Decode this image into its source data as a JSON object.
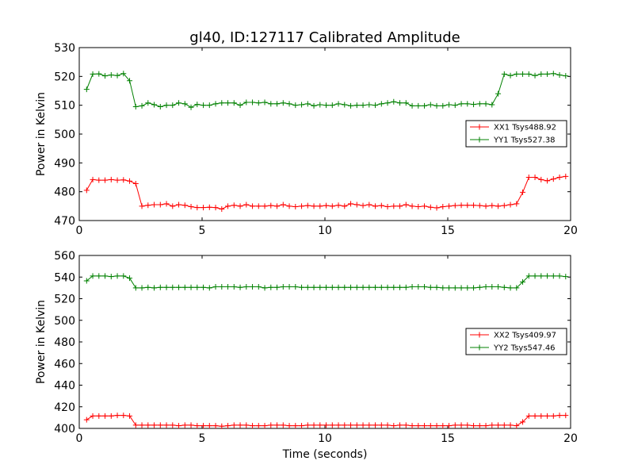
{
  "title": "gl40, ID:127117 Calibrated Amplitude",
  "chart_data": [
    {
      "type": "line",
      "title": "gl40, ID:127117 Calibrated Amplitude",
      "xlabel": "",
      "ylabel": "Power in Kelvin",
      "xlim": [
        0,
        20
      ],
      "ylim": [
        470,
        530
      ],
      "xticks": [
        0,
        5,
        10,
        15,
        20
      ],
      "yticks": [
        470,
        480,
        490,
        500,
        510,
        520,
        530
      ],
      "grid": false,
      "legend_position": "center-right",
      "series": [
        {
          "name": "XX1 Tsys488.92",
          "color": "#ff0000",
          "x": [
            0.3,
            0.55,
            0.8,
            1.05,
            1.3,
            1.55,
            1.8,
            2.05,
            2.3,
            2.55,
            2.8,
            3.05,
            3.3,
            3.55,
            3.8,
            4.05,
            4.3,
            4.55,
            4.8,
            5.05,
            5.3,
            5.55,
            5.8,
            6.05,
            6.3,
            6.55,
            6.8,
            7.05,
            7.3,
            7.55,
            7.8,
            8.05,
            8.3,
            8.55,
            8.8,
            9.05,
            9.3,
            9.55,
            9.8,
            10.05,
            10.3,
            10.55,
            10.8,
            11.05,
            11.3,
            11.55,
            11.8,
            12.05,
            12.3,
            12.55,
            12.8,
            13.05,
            13.3,
            13.55,
            13.8,
            14.05,
            14.3,
            14.55,
            14.8,
            15.05,
            15.3,
            15.55,
            15.8,
            16.05,
            16.3,
            16.55,
            16.8,
            17.05,
            17.3,
            17.55,
            17.8,
            18.05,
            18.3,
            18.55,
            18.8,
            19.05,
            19.3,
            19.55,
            19.8
          ],
          "y": [
            480.5,
            484.2,
            484.0,
            484.0,
            484.2,
            484.0,
            484.1,
            483.7,
            482.8,
            475.0,
            475.3,
            475.5,
            475.5,
            475.8,
            475.0,
            475.5,
            475.3,
            474.8,
            474.5,
            474.5,
            474.6,
            474.5,
            474.0,
            475.0,
            475.3,
            475.0,
            475.5,
            475.0,
            475.0,
            475.0,
            475.2,
            475.0,
            475.5,
            475.0,
            474.8,
            475.0,
            475.2,
            475.0,
            475.0,
            475.2,
            475.0,
            475.3,
            475.0,
            475.8,
            475.5,
            475.2,
            475.5,
            475.0,
            475.2,
            474.8,
            475.0,
            475.0,
            475.5,
            475.0,
            474.8,
            475.0,
            474.6,
            474.4,
            474.8,
            475.0,
            475.2,
            475.3,
            475.3,
            475.3,
            475.2,
            475.0,
            475.2,
            475.0,
            475.2,
            475.5,
            475.8,
            479.8,
            485.0,
            485.0,
            484.2,
            483.8,
            484.4,
            485.0,
            485.3
          ]
        },
        {
          "name": "YY1 Tsys527.38",
          "color": "#008000",
          "x": [
            0.3,
            0.55,
            0.8,
            1.05,
            1.3,
            1.55,
            1.8,
            2.05,
            2.3,
            2.55,
            2.8,
            3.05,
            3.3,
            3.55,
            3.8,
            4.05,
            4.3,
            4.55,
            4.8,
            5.05,
            5.3,
            5.55,
            5.8,
            6.05,
            6.3,
            6.55,
            6.8,
            7.05,
            7.3,
            7.55,
            7.8,
            8.05,
            8.3,
            8.55,
            8.8,
            9.05,
            9.3,
            9.55,
            9.8,
            10.05,
            10.3,
            10.55,
            10.8,
            11.05,
            11.3,
            11.55,
            11.8,
            12.05,
            12.3,
            12.55,
            12.8,
            13.05,
            13.3,
            13.55,
            13.8,
            14.05,
            14.3,
            14.55,
            14.8,
            15.05,
            15.3,
            15.55,
            15.8,
            16.05,
            16.3,
            16.55,
            16.8,
            17.05,
            17.3,
            17.55,
            17.8,
            18.05,
            18.3,
            18.55,
            18.8,
            19.05,
            19.3,
            19.55,
            19.8
          ],
          "y": [
            515.5,
            520.8,
            520.9,
            520.2,
            520.5,
            520.3,
            521.0,
            518.5,
            509.5,
            509.8,
            510.8,
            510.2,
            509.5,
            510.0,
            510.0,
            510.8,
            510.5,
            509.3,
            510.3,
            510.0,
            510.0,
            510.5,
            510.8,
            510.8,
            510.8,
            510.0,
            511.0,
            511.0,
            510.8,
            511.0,
            510.5,
            510.5,
            510.8,
            510.5,
            510.0,
            510.2,
            510.5,
            509.8,
            510.2,
            510.0,
            510.0,
            510.5,
            510.2,
            509.8,
            510.0,
            510.0,
            510.2,
            510.0,
            510.5,
            510.8,
            511.2,
            510.8,
            510.8,
            509.8,
            509.8,
            509.8,
            510.2,
            509.8,
            509.8,
            510.2,
            510.0,
            510.5,
            510.5,
            510.3,
            510.5,
            510.5,
            510.2,
            514.0,
            520.8,
            520.3,
            520.8,
            520.8,
            520.8,
            520.3,
            520.8,
            520.8,
            521.0,
            520.5,
            520.2
          ],
          "_note_x_end": ""
        }
      ]
    },
    {
      "type": "line",
      "title": "",
      "xlabel": "Time (seconds)",
      "ylabel": "Power in Kelvin",
      "xlim": [
        0,
        20
      ],
      "ylim": [
        400,
        560
      ],
      "xticks": [
        0,
        5,
        10,
        15,
        20
      ],
      "yticks": [
        400,
        420,
        440,
        460,
        480,
        500,
        520,
        540,
        560
      ],
      "grid": false,
      "legend_position": "center-right",
      "series": [
        {
          "name": "XX2 Tsys409.97",
          "color": "#ff0000",
          "x": [
            0.3,
            0.55,
            0.8,
            1.05,
            1.3,
            1.55,
            1.8,
            2.05,
            2.3,
            2.55,
            2.8,
            3.05,
            3.3,
            3.55,
            3.8,
            4.05,
            4.3,
            4.55,
            4.8,
            5.05,
            5.3,
            5.55,
            5.8,
            6.05,
            6.3,
            6.55,
            6.8,
            7.05,
            7.3,
            7.55,
            7.8,
            8.05,
            8.3,
            8.55,
            8.8,
            9.05,
            9.3,
            9.55,
            9.8,
            10.05,
            10.3,
            10.55,
            10.8,
            11.05,
            11.3,
            11.55,
            11.8,
            12.05,
            12.3,
            12.55,
            12.8,
            13.05,
            13.3,
            13.55,
            13.8,
            14.05,
            14.3,
            14.55,
            14.8,
            15.05,
            15.3,
            15.55,
            15.8,
            16.05,
            16.3,
            16.55,
            16.8,
            17.05,
            17.3,
            17.55,
            17.8,
            18.05,
            18.3,
            18.55,
            18.8,
            19.05,
            19.3,
            19.55,
            19.8
          ],
          "y": [
            408,
            411.5,
            411.5,
            411.5,
            411.5,
            412,
            412,
            411.5,
            403,
            403,
            403,
            403,
            403,
            403,
            403,
            402.5,
            403,
            403,
            402.5,
            402.5,
            402.5,
            402.5,
            402,
            402.5,
            403,
            403,
            403,
            402.5,
            402.5,
            402.5,
            403,
            403,
            403,
            402.5,
            402.5,
            402.5,
            403,
            403,
            403,
            403,
            403,
            403,
            403,
            403,
            403,
            403,
            403,
            403,
            403,
            403,
            402.5,
            403,
            403,
            402.5,
            402.5,
            402.5,
            402.5,
            402.5,
            402.5,
            402.5,
            403,
            403,
            403,
            402.5,
            402.5,
            402.5,
            403,
            403,
            403,
            403,
            402.5,
            406,
            411.5,
            411.5,
            411.5,
            411.5,
            411.5,
            412,
            412
          ]
        },
        {
          "name": "YY2 Tsys547.46",
          "color": "#008000",
          "x": [
            0.3,
            0.55,
            0.8,
            1.05,
            1.3,
            1.55,
            1.8,
            2.05,
            2.3,
            2.55,
            2.8,
            3.05,
            3.3,
            3.55,
            3.8,
            4.05,
            4.3,
            4.55,
            4.8,
            5.05,
            5.3,
            5.55,
            5.8,
            6.05,
            6.3,
            6.55,
            6.8,
            7.05,
            7.3,
            7.55,
            7.8,
            8.05,
            8.3,
            8.55,
            8.8,
            9.05,
            9.3,
            9.55,
            9.8,
            10.05,
            10.3,
            10.55,
            10.8,
            11.05,
            11.3,
            11.55,
            11.8,
            12.05,
            12.3,
            12.55,
            12.8,
            13.05,
            13.3,
            13.55,
            13.8,
            14.05,
            14.3,
            14.55,
            14.8,
            15.05,
            15.3,
            15.55,
            15.8,
            16.05,
            16.3,
            16.55,
            16.8,
            17.05,
            17.3,
            17.55,
            17.8,
            18.05,
            18.3,
            18.55,
            18.8,
            19.05,
            19.3,
            19.55,
            19.8
          ],
          "y": [
            536.5,
            541,
            541,
            541,
            540.5,
            541,
            541,
            539,
            530,
            530,
            530.5,
            530,
            530.5,
            530.5,
            530.5,
            530.5,
            530.5,
            530.5,
            530.5,
            530.5,
            530,
            531,
            531,
            531,
            531,
            530.5,
            531,
            531,
            531,
            530,
            530.5,
            530.5,
            531,
            531,
            531,
            530.5,
            530.5,
            530.5,
            530.5,
            530.5,
            530.5,
            530.5,
            530.5,
            530.5,
            530.5,
            530.5,
            530.5,
            530.5,
            530.5,
            530.5,
            530.5,
            530.5,
            530.5,
            531,
            531,
            531,
            530.5,
            530.5,
            530,
            530,
            530,
            530,
            530,
            530,
            530.5,
            531,
            531,
            531,
            530.5,
            530,
            530,
            535.5,
            541,
            541,
            541,
            541,
            541,
            541,
            540.5
          ]
        }
      ]
    }
  ]
}
